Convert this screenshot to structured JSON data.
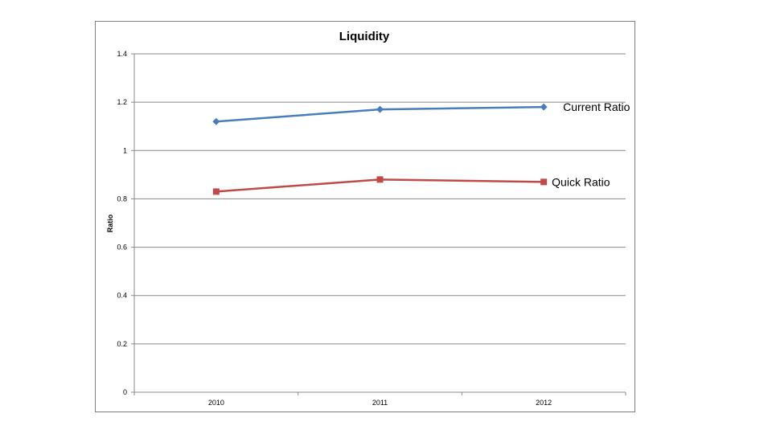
{
  "chart_data": {
    "type": "line",
    "title": "Liquidity",
    "xlabel": "",
    "ylabel": "Ratio",
    "categories": [
      "2010",
      "2011",
      "2012"
    ],
    "ylim": [
      0,
      1.4
    ],
    "yticks": [
      0,
      0.2,
      0.4,
      0.6,
      0.8,
      1,
      1.2,
      1.4
    ],
    "grid": "horizontal",
    "legend": "none (series labeled at line ends)",
    "series": [
      {
        "name": "Current Ratio",
        "values": [
          1.12,
          1.17,
          1.18
        ],
        "color": "#4a7ebb",
        "marker": "diamond"
      },
      {
        "name": "Quick Ratio",
        "values": [
          0.83,
          0.88,
          0.87
        ],
        "color": "#be4b48",
        "marker": "square"
      }
    ]
  }
}
